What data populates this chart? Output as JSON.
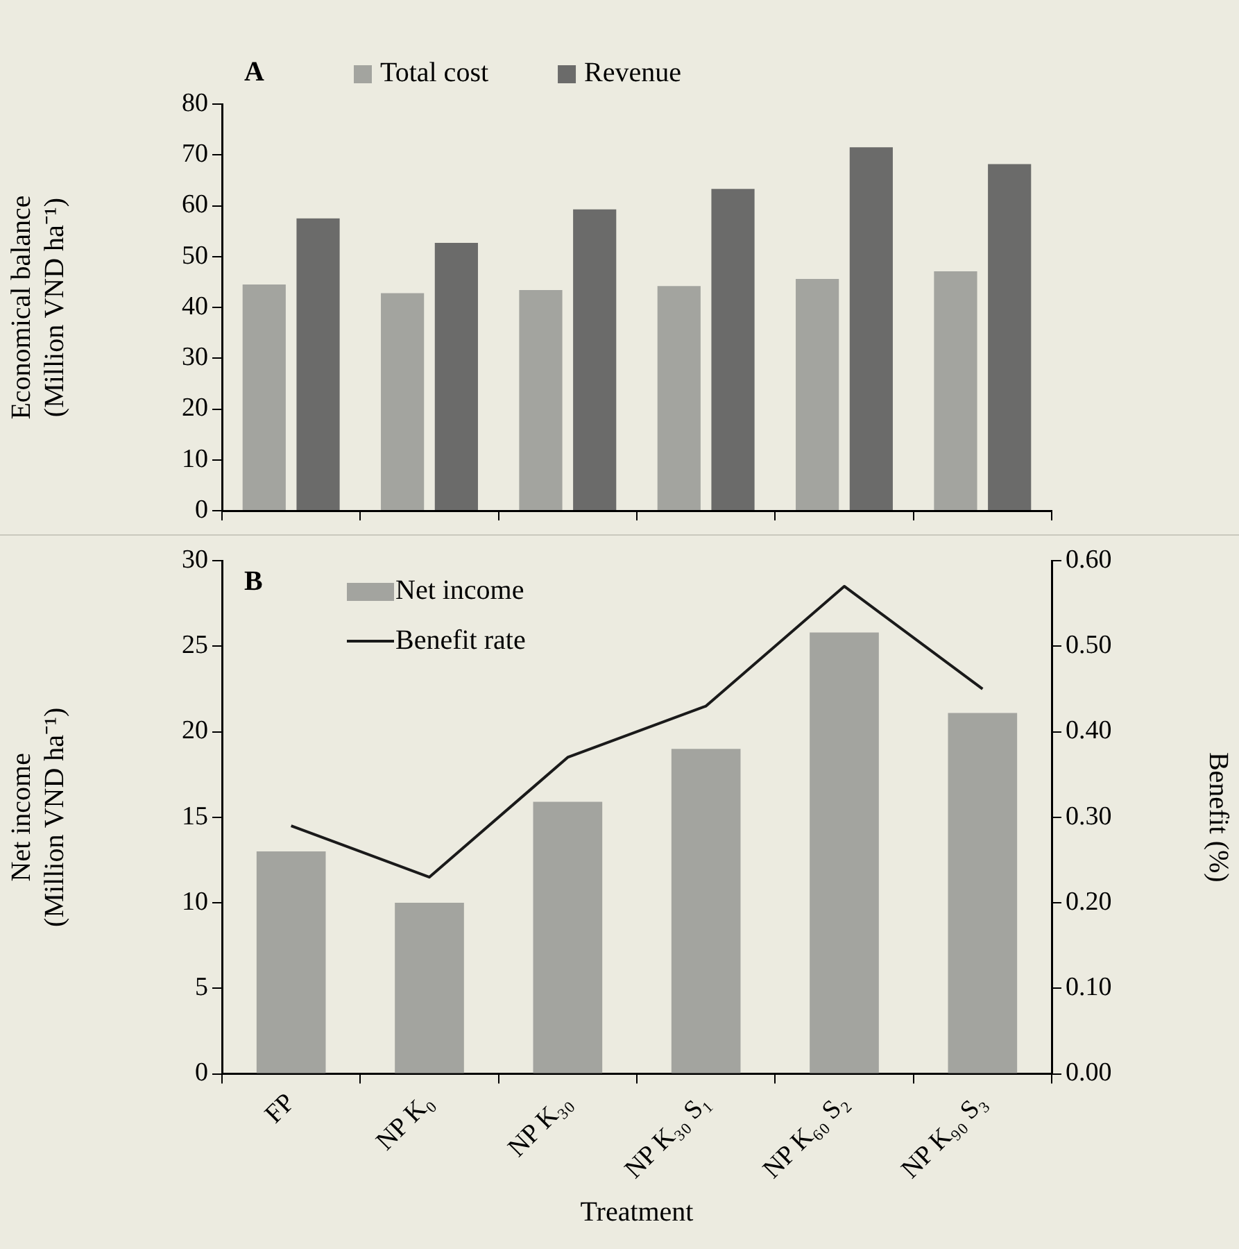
{
  "chart_data": [
    {
      "type": "bar",
      "ylabel": "Economical balance\n(Million VND ha⁻¹)",
      "categories": [
        null,
        null,
        null,
        null,
        null,
        null
      ],
      "series": [
        {
          "name": "Total cost",
          "color": "#a3a49f",
          "values": [
            44.5,
            42.8,
            43.4,
            44.2,
            45.6,
            47.1
          ]
        },
        {
          "name": "Revenue",
          "color": "#6b6b6a",
          "values": [
            57.5,
            52.7,
            59.3,
            63.3,
            71.5,
            68.2
          ]
        }
      ],
      "ylim": [
        0,
        80
      ],
      "yticks": [
        0,
        10,
        20,
        30,
        40,
        50,
        60,
        70,
        80
      ],
      "tick_labels": "y",
      "grid": false,
      "legend": "top",
      "annotations": [
        "A"
      ]
    },
    {
      "type": "bar",
      "xlabel": "Treatment",
      "ylabel": "Net income\n(Million VND ha⁻¹)",
      "y2label": "Benefit (%)",
      "categories": [
        "FP",
        "NP K₀",
        "NP K₃₀",
        "NP K₃₀ S₁",
        "NP K₆₀ S₂",
        "NP K₉₀ S₃"
      ],
      "series": [
        {
          "name": "Net income",
          "color": "#a3a49f",
          "values": [
            13.0,
            10.0,
            15.9,
            19.0,
            25.8,
            21.1
          ]
        },
        {
          "name": "Benefit rate",
          "type": "line",
          "axis": "y2",
          "color": "#1a1a1a",
          "values": [
            0.29,
            0.23,
            0.37,
            0.43,
            0.57,
            0.45
          ]
        }
      ],
      "ylim": [
        0,
        30
      ],
      "yticks": [
        0,
        5,
        10,
        15,
        20,
        25,
        30
      ],
      "y2lim": [
        0,
        0.6
      ],
      "y2ticks": [
        {
          "value": 0,
          "label": "0.00"
        },
        {
          "value": 0.1,
          "label": "0.10"
        },
        {
          "value": 0.2,
          "label": "0.20"
        },
        {
          "value": 0.3,
          "label": "0.30"
        },
        {
          "value": 0.4,
          "label": "0.40"
        },
        {
          "value": 0.5,
          "label": "0.50"
        },
        {
          "value": 0.6,
          "label": "0.60"
        }
      ],
      "grid": false,
      "legend": "top left",
      "marker": "none",
      "line_style": "solid",
      "annotations": [
        "B"
      ]
    }
  ]
}
